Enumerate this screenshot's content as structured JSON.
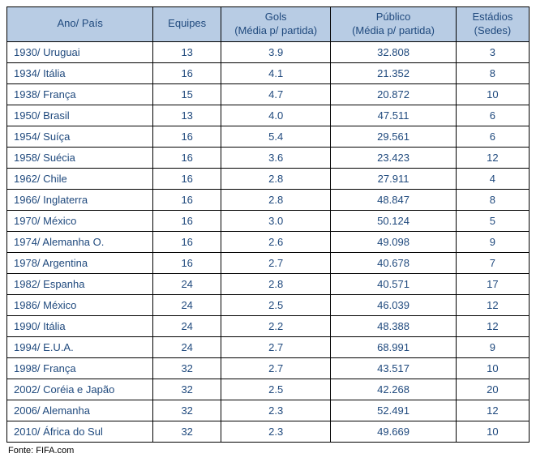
{
  "table": {
    "header_bg": "#b8cce4",
    "header_text_color": "#1f497d",
    "cell_text_color": "#1f497d",
    "border_color": "#000000",
    "columns": [
      {
        "label_line1": "Ano/ País",
        "label_line2": ""
      },
      {
        "label_line1": "Equipes",
        "label_line2": ""
      },
      {
        "label_line1": "Gols",
        "label_line2": "(Média p/ partida)"
      },
      {
        "label_line1": "Público",
        "label_line2": "(Média p/ partida)"
      },
      {
        "label_line1": "Estádios",
        "label_line2": "(Sedes)"
      }
    ],
    "rows": [
      {
        "country": "1930/ Uruguai",
        "teams": "13",
        "goals": "3.9",
        "public": "32.808",
        "stadiums": "3"
      },
      {
        "country": "1934/ Itália",
        "teams": "16",
        "goals": "4.1",
        "public": "21.352",
        "stadiums": "8"
      },
      {
        "country": "1938/ França",
        "teams": "15",
        "goals": "4.7",
        "public": "20.872",
        "stadiums": "10"
      },
      {
        "country": "1950/ Brasil",
        "teams": "13",
        "goals": "4.0",
        "public": "47.511",
        "stadiums": "6"
      },
      {
        "country": "1954/ Suíça",
        "teams": "16",
        "goals": "5.4",
        "public": "29.561",
        "stadiums": "6"
      },
      {
        "country": "1958/ Suécia",
        "teams": "16",
        "goals": "3.6",
        "public": "23.423",
        "stadiums": "12"
      },
      {
        "country": "1962/ Chile",
        "teams": "16",
        "goals": "2.8",
        "public": "27.911",
        "stadiums": "4"
      },
      {
        "country": "1966/ Inglaterra",
        "teams": "16",
        "goals": "2.8",
        "public": "48.847",
        "stadiums": "8"
      },
      {
        "country": "1970/ México",
        "teams": "16",
        "goals": "3.0",
        "public": "50.124",
        "stadiums": "5"
      },
      {
        "country": "1974/ Alemanha O.",
        "teams": "16",
        "goals": "2.6",
        "public": "49.098",
        "stadiums": "9"
      },
      {
        "country": "1978/ Argentina",
        "teams": "16",
        "goals": "2.7",
        "public": "40.678",
        "stadiums": "7"
      },
      {
        "country": "1982/ Espanha",
        "teams": "24",
        "goals": "2.8",
        "public": "40.571",
        "stadiums": "17"
      },
      {
        "country": "1986/ México",
        "teams": "24",
        "goals": "2.5",
        "public": "46.039",
        "stadiums": "12"
      },
      {
        "country": "1990/ Itália",
        "teams": "24",
        "goals": "2.2",
        "public": "48.388",
        "stadiums": "12"
      },
      {
        "country": "1994/ E.U.A.",
        "teams": "24",
        "goals": "2.7",
        "public": "68.991",
        "stadiums": "9"
      },
      {
        "country": "1998/ França",
        "teams": "32",
        "goals": "2.7",
        "public": "43.517",
        "stadiums": "10"
      },
      {
        "country": "2002/ Coréia e Japão",
        "teams": "32",
        "goals": "2.5",
        "public": "42.268",
        "stadiums": "20"
      },
      {
        "country": "2006/ Alemanha",
        "teams": "32",
        "goals": "2.3",
        "public": "52.491",
        "stadiums": "12"
      },
      {
        "country": "2010/ África do Sul",
        "teams": "32",
        "goals": "2.3",
        "public": "49.669",
        "stadiums": "10"
      }
    ]
  },
  "source_label": "Fonte: FIFA.com"
}
